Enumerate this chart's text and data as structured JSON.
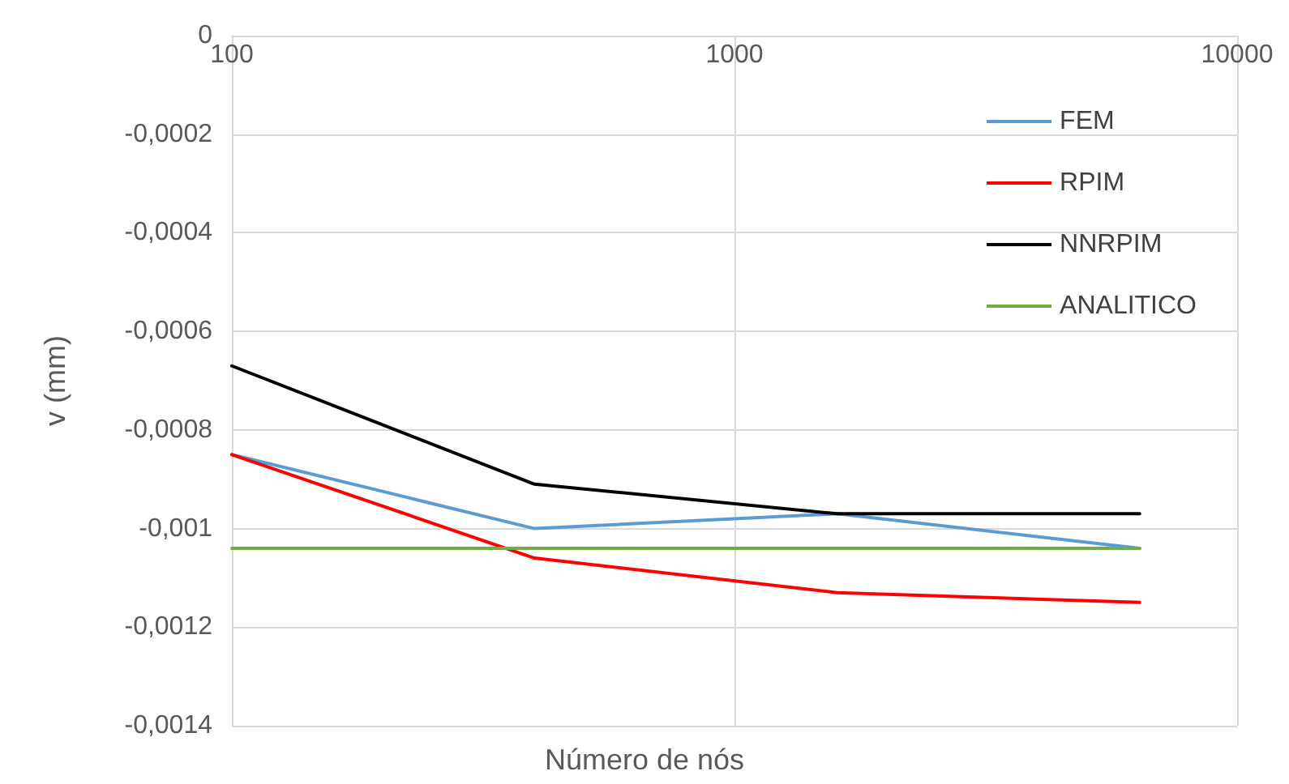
{
  "chart_data": {
    "type": "line",
    "xlabel": "Número de nós",
    "ylabel": "v (mm)",
    "log": "x",
    "grid": true,
    "legend": "top right",
    "marker": "none",
    "line_style": "solid",
    "x": [
      100,
      400,
      1600,
      6400
    ],
    "xlim": [
      100,
      10000
    ],
    "xticks": [
      100,
      1000,
      10000
    ],
    "ylim": [
      -0.0014,
      0
    ],
    "yticks": [
      {
        "value": -0.0014,
        "label": "-0,0014"
      },
      {
        "value": -0.0012,
        "label": "-0,0012"
      },
      {
        "value": -0.001,
        "label": "-0,001"
      },
      {
        "value": -0.0008,
        "label": "-0,0008"
      },
      {
        "value": -0.0006,
        "label": "-0,0006"
      },
      {
        "value": -0.0004,
        "label": "-0,0004"
      },
      {
        "value": -0.0002,
        "label": "-0,0002"
      },
      0
    ],
    "series": [
      {
        "name": "FEM",
        "color": "#5b9bd5",
        "values": [
          -0.00085,
          -0.001,
          -0.00097,
          -0.00104
        ]
      },
      {
        "name": "RPIM",
        "color": "#ff0000",
        "values": [
          -0.00085,
          -0.00106,
          -0.00113,
          -0.00115
        ]
      },
      {
        "name": "NNRPIM",
        "color": "#000000",
        "values": [
          -0.00067,
          -0.00091,
          -0.00097,
          -0.00097
        ]
      },
      {
        "name": "ANALITICO",
        "color": "#70ad47",
        "values": [
          -0.00104,
          -0.00104,
          -0.00104,
          -0.00104
        ]
      }
    ]
  }
}
